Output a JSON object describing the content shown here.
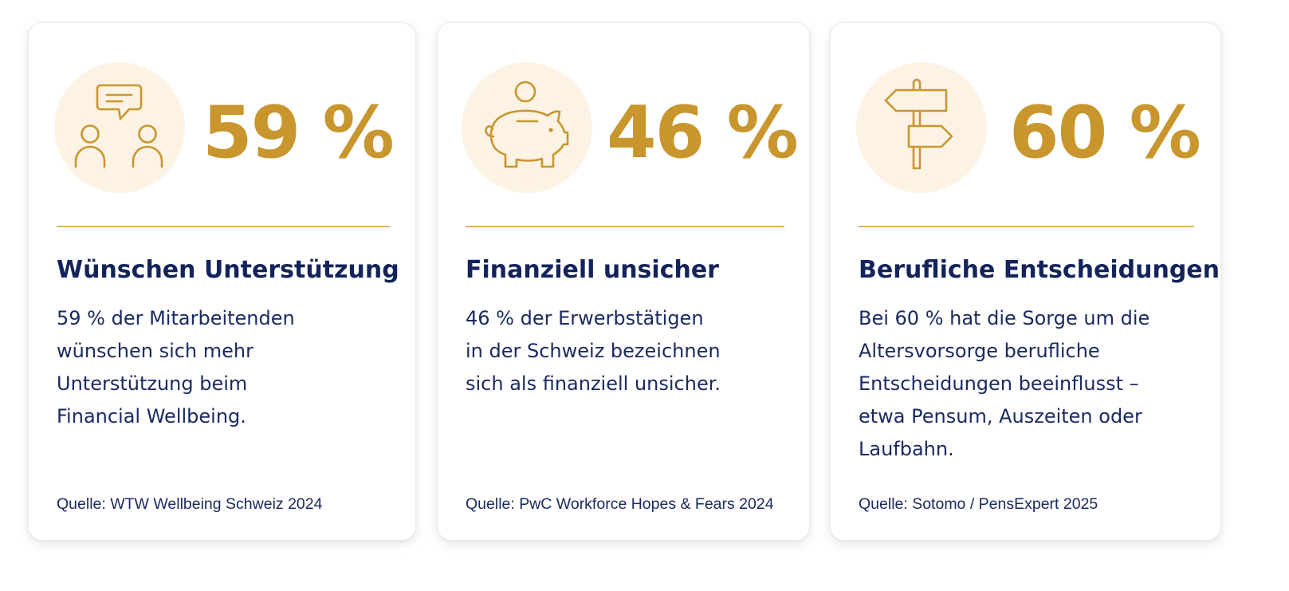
{
  "colors": {
    "accent_gold": "#c9962e",
    "icon_background": "#fdf3e4",
    "divider": "#dcb45c",
    "heading_navy": "#13235b",
    "text_navy": "#1b2a60"
  },
  "cards": [
    {
      "icon": "people-chat-icon",
      "stat": "59 %",
      "title": "Wünschen Unterstützung",
      "body_lines": [
        "59 % der Mitarbeitenden",
        "wünschen sich mehr",
        "Unterstützung beim",
        "Financial Wellbeing."
      ],
      "source": "Quelle: WTW Wellbeing Schweiz 2024"
    },
    {
      "icon": "piggy-bank-icon",
      "stat": "46 %",
      "title": "Finanziell unsicher",
      "body_lines": [
        "46 % der Erwerbstätigen",
        "in der Schweiz bezeichnen",
        "sich als finanziell unsicher."
      ],
      "source": "Quelle: PwC Workforce Hopes & Fears 2024"
    },
    {
      "icon": "signpost-icon",
      "stat": "60 %",
      "title": "Berufliche Entscheidungen",
      "body_lines": [
        "Bei 60 % hat die Sorge um die",
        "Altersvorsorge berufliche",
        "Entscheidungen beeinflusst –",
        "etwa Pensum, Auszeiten oder",
        "Laufbahn."
      ],
      "source": "Quelle: Sotomo / PensExpert 2025"
    }
  ]
}
